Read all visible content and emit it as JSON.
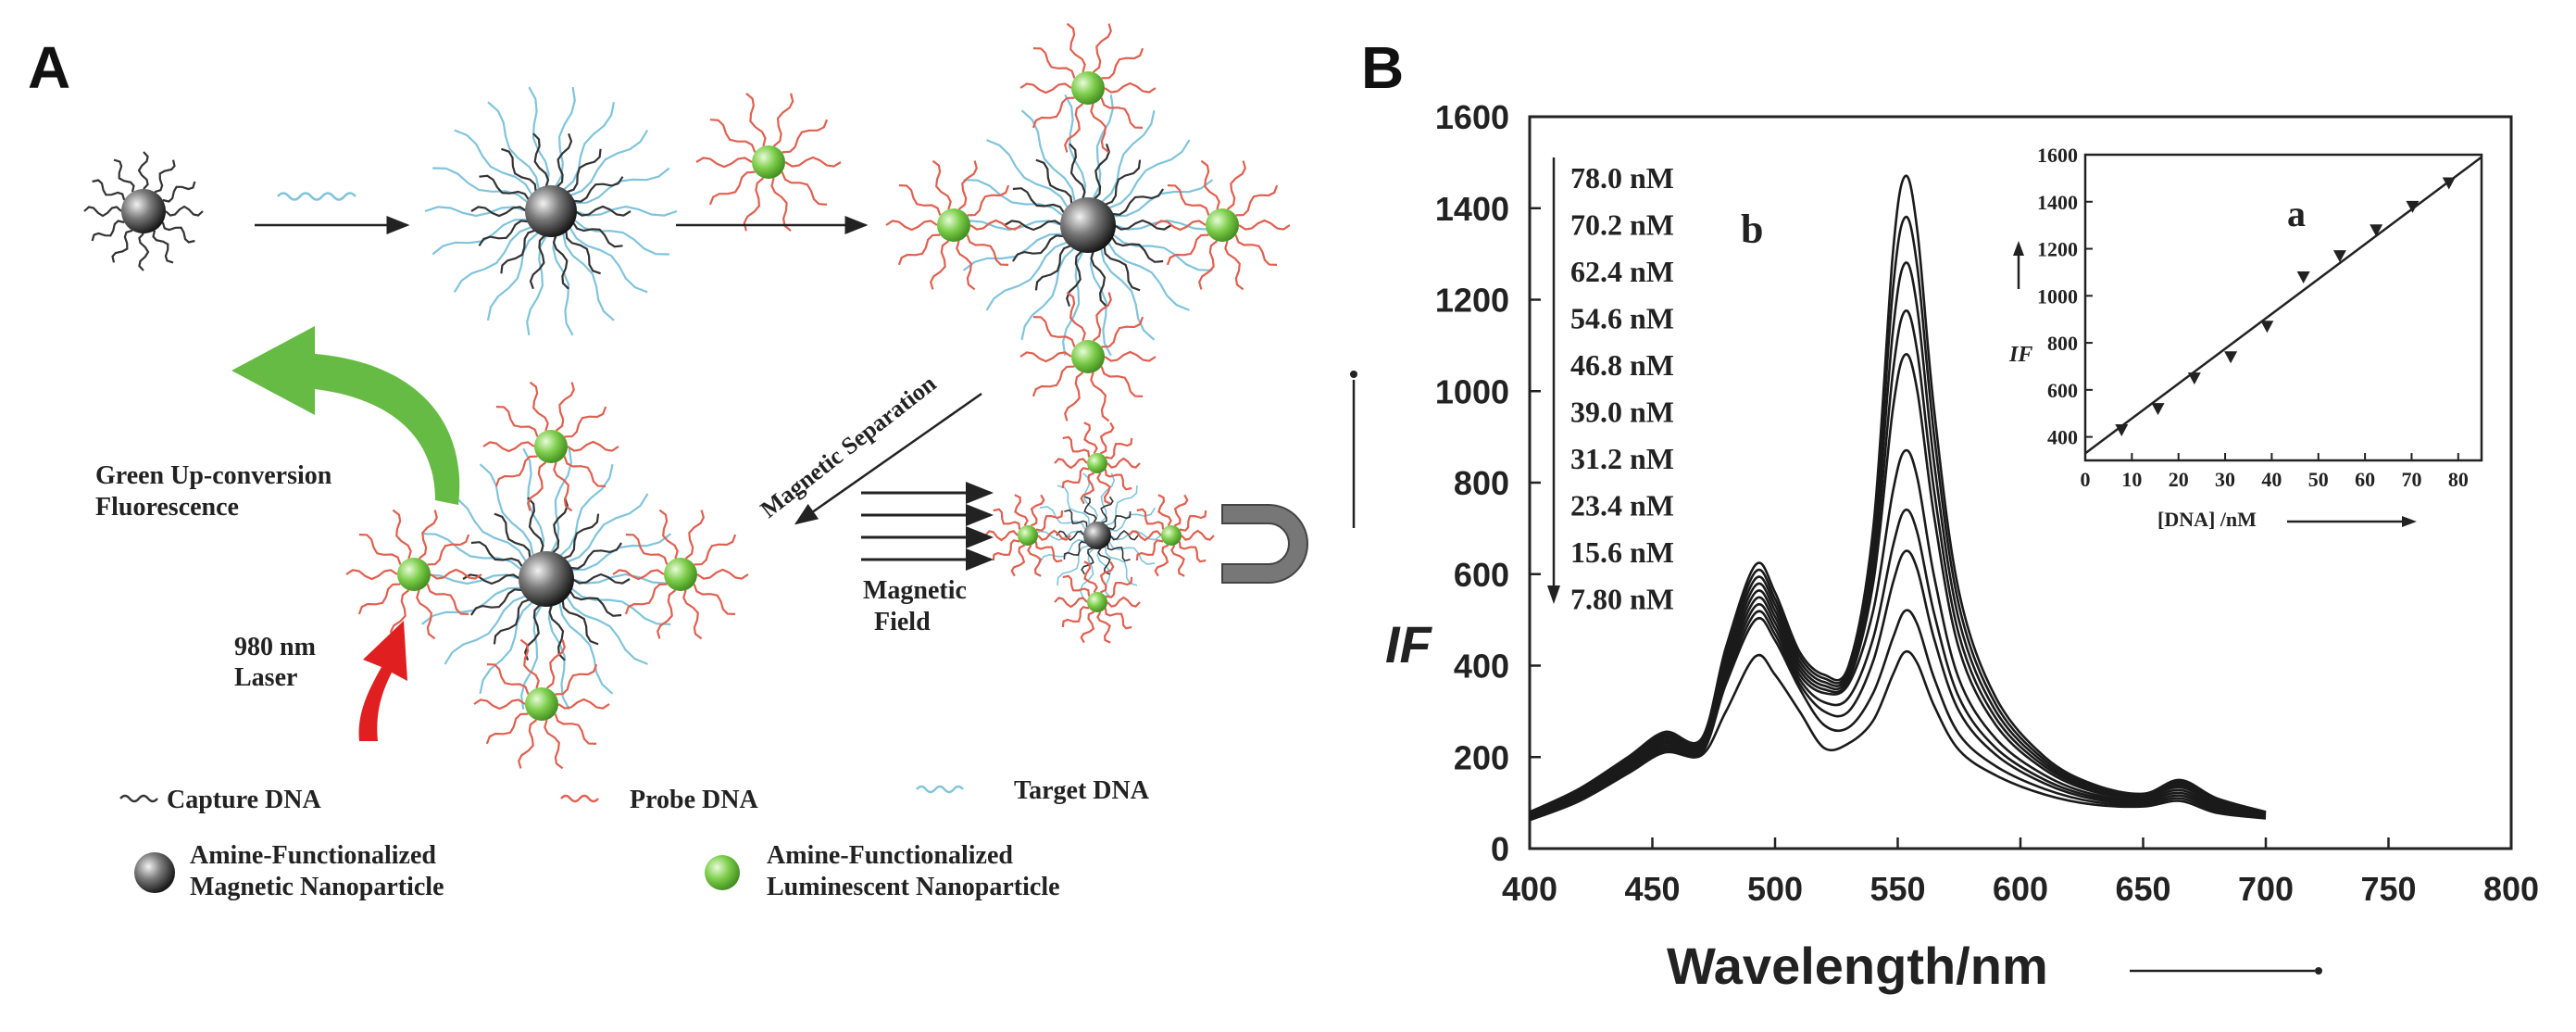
{
  "panel_a": {
    "label": "A",
    "label_green_fluor": [
      "Green Up-conversion",
      "Fluorescence"
    ],
    "label_laser": [
      "980 nm",
      "Laser"
    ],
    "label_mag_sep": "Magnetic Separation",
    "label_mag_field": [
      "Magnetic",
      "Field"
    ],
    "legend": {
      "capture": "Capture DNA",
      "probe": "Probe DNA",
      "target": "Target DNA",
      "magnetic_np": [
        "Amine-Functionalized",
        "Magnetic Nanoparticle"
      ],
      "luminescent_np": [
        "Amine-Functionalized",
        "Luminescent Nanoparticle"
      ]
    },
    "colors": {
      "capture": "#333333",
      "probe": "#e06050",
      "target": "#7fc4dc",
      "green_arrow": "#66bb44",
      "red_arrow": "#e02020",
      "luminescent": "#7ccd4a"
    }
  },
  "panel_b": {
    "label": "B",
    "sublabel_main": "b",
    "sublabel_inset": "a",
    "concentrations": [
      "78.0 nM",
      "70.2 nM",
      "62.4 nM",
      "54.6 nM",
      "46.8 nM",
      "39.0 nM",
      "31.2 nM",
      "23.4 nM",
      "15.6 nM",
      "7.80 nM"
    ]
  },
  "chart_data": [
    {
      "type": "line",
      "xlabel": "Wavelength/nm",
      "ylabel": "IF",
      "xlim": [
        400,
        800
      ],
      "ylim": [
        0,
        1600
      ],
      "xticks": [
        400,
        450,
        500,
        550,
        600,
        650,
        700,
        750,
        800
      ],
      "yticks": [
        0,
        200,
        400,
        600,
        800,
        1000,
        1200,
        1400,
        1600
      ],
      "x": [
        400,
        420,
        440,
        455,
        470,
        480,
        492,
        500,
        510,
        520,
        530,
        540,
        548,
        553,
        558,
        565,
        575,
        590,
        610,
        630,
        650,
        665,
        680,
        700
      ],
      "series": [
        {
          "values": [
            80,
            130,
            200,
            255,
            240,
            440,
            620,
            560,
            430,
            380,
            400,
            700,
            1300,
            1470,
            1350,
            950,
            560,
            330,
            200,
            140,
            120,
            150,
            110,
            80
          ]
        },
        {
          "values": [
            78,
            127,
            196,
            250,
            236,
            430,
            605,
            546,
            420,
            372,
            392,
            670,
            1220,
            1380,
            1270,
            895,
            530,
            315,
            193,
            136,
            118,
            146,
            107,
            79
          ]
        },
        {
          "values": [
            76,
            124,
            192,
            245,
            232,
            420,
            590,
            533,
            410,
            364,
            384,
            640,
            1130,
            1280,
            1180,
            835,
            498,
            300,
            186,
            132,
            116,
            142,
            104,
            78
          ]
        },
        {
          "values": [
            74,
            121,
            188,
            240,
            228,
            410,
            575,
            520,
            400,
            356,
            376,
            610,
            1040,
            1175,
            1085,
            775,
            466,
            285,
            179,
            128,
            114,
            138,
            101,
            77
          ]
        },
        {
          "values": [
            72,
            118,
            184,
            235,
            224,
            400,
            560,
            507,
            390,
            348,
            368,
            580,
            960,
            1080,
            1000,
            720,
            436,
            270,
            172,
            124,
            112,
            134,
            98,
            76
          ]
        },
        {
          "values": [
            70,
            115,
            180,
            230,
            220,
            390,
            545,
            494,
            380,
            340,
            360,
            520,
            780,
            870,
            810,
            590,
            370,
            240,
            160,
            118,
            108,
            128,
            94,
            74
          ]
        },
        {
          "values": [
            68,
            112,
            176,
            225,
            216,
            380,
            530,
            481,
            370,
            320,
            330,
            460,
            660,
            740,
            690,
            510,
            330,
            220,
            150,
            113,
            104,
            122,
            90,
            72
          ]
        },
        {
          "values": [
            66,
            109,
            172,
            220,
            212,
            370,
            515,
            468,
            360,
            300,
            300,
            410,
            580,
            650,
            610,
            455,
            300,
            205,
            142,
            108,
            100,
            116,
            86,
            70
          ]
        },
        {
          "values": [
            64,
            106,
            168,
            215,
            208,
            360,
            500,
            455,
            350,
            270,
            265,
            340,
            460,
            520,
            490,
            370,
            250,
            180,
            130,
            102,
            96,
            110,
            82,
            68
          ]
        },
        {
          "values": [
            62,
            103,
            164,
            210,
            204,
            300,
            420,
            380,
            300,
            220,
            230,
            280,
            380,
            430,
            405,
            310,
            215,
            160,
            118,
            96,
            92,
            104,
            78,
            66
          ]
        }
      ]
    },
    {
      "type": "scatter",
      "xlabel": "[DNA] /nM",
      "ylabel": "IF",
      "xlim": [
        0,
        85
      ],
      "ylim": [
        300,
        1600
      ],
      "xticks": [
        0,
        10,
        20,
        30,
        40,
        50,
        60,
        70,
        80
      ],
      "yticks": [
        400,
        600,
        800,
        1000,
        1200,
        1400,
        1600
      ],
      "x": [
        7.8,
        15.6,
        23.4,
        31.2,
        39.0,
        46.8,
        54.6,
        62.4,
        70.2,
        78.0
      ],
      "values": [
        430,
        520,
        650,
        740,
        870,
        1080,
        1170,
        1280,
        1380,
        1480
      ],
      "fit_line": {
        "x": [
          0,
          85
        ],
        "y": [
          330,
          1590
        ]
      }
    }
  ]
}
